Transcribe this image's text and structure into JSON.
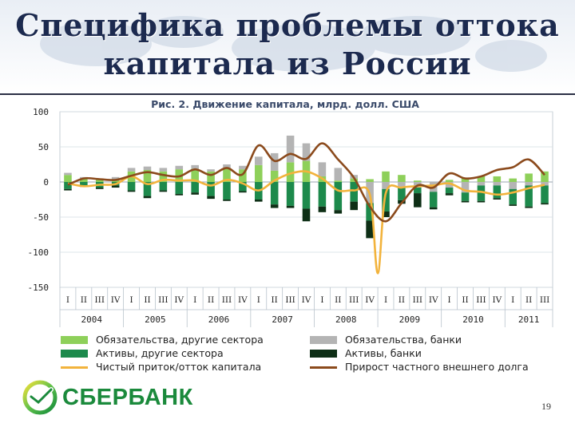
{
  "slide": {
    "title_line1": "Специфика проблемы оттока",
    "title_line2": "капитала из России",
    "brand": "СБЕРБАНК",
    "page_number": "19"
  },
  "colors": {
    "liab_other": "#8ed05a",
    "assets_other": "#1d8a4c",
    "liab_banks": "#b4b4b4",
    "assets_banks": "#0e2f16",
    "net_flow": "#f2b33c",
    "debt_growth": "#8b4a1c",
    "title": "#1c2a4f",
    "brand_green": "#1b8a3c"
  },
  "chart_data": {
    "type": "bar",
    "title": "Рис. 2. Движение капитала, млрд. долл. США",
    "ylim": [
      -150,
      100
    ],
    "yticks": [
      "100",
      "50",
      "0",
      "-50",
      "-100",
      "-150"
    ],
    "ytick_values": [
      100,
      50,
      0,
      -50,
      -100,
      -150
    ],
    "categories": [
      "I",
      "II",
      "III",
      "IV",
      "I",
      "II",
      "III",
      "IV",
      "I",
      "II",
      "III",
      "IV",
      "I",
      "II",
      "III",
      "IV",
      "I",
      "II",
      "III",
      "IV",
      "I",
      "II",
      "III",
      "IV",
      "I",
      "II",
      "III",
      "IV",
      "I",
      "II",
      "III"
    ],
    "years": [
      "2004",
      "2005",
      "2006",
      "2007",
      "2008",
      "2009",
      "2010",
      "2011"
    ],
    "year_quarter_counts": [
      4,
      4,
      4,
      4,
      4,
      4,
      4,
      3
    ],
    "grid": "horizontal",
    "series": [
      {
        "name": "Обязательства, другие сектора",
        "kind": "bar",
        "values": [
          10,
          5,
          3,
          4,
          15,
          17,
          15,
          18,
          19,
          15,
          20,
          18,
          24,
          16,
          28,
          30,
          8,
          2,
          5,
          4,
          15,
          10,
          2,
          0,
          3,
          5,
          8,
          8,
          5,
          12,
          15
        ]
      },
      {
        "name": "Активы, другие сектора",
        "kind": "bar",
        "values": [
          -10,
          -5,
          -8,
          -5,
          -12,
          -20,
          -12,
          -17,
          -15,
          -20,
          -25,
          -13,
          -25,
          -32,
          -34,
          -38,
          -35,
          -40,
          -28,
          -25,
          -32,
          -18,
          -8,
          -22,
          -8,
          -12,
          -22,
          -18,
          -22,
          -30,
          -25
        ]
      },
      {
        "name": "Обязательства, банки",
        "kind": "bar",
        "values": [
          3,
          2,
          2,
          3,
          5,
          5,
          5,
          5,
          5,
          3,
          5,
          5,
          12,
          25,
          38,
          25,
          20,
          18,
          5,
          -30,
          -10,
          -8,
          -8,
          -14,
          -8,
          -15,
          -5,
          -5,
          -10,
          -5,
          -5
        ]
      },
      {
        "name": "Активы, банки",
        "kind": "bar",
        "values": [
          -2,
          -2,
          -2,
          -3,
          -2,
          -3,
          -2,
          -2,
          -3,
          -4,
          -2,
          -2,
          -3,
          -5,
          -3,
          -18,
          -8,
          -5,
          -12,
          -25,
          -8,
          -5,
          -20,
          -3,
          -3,
          -2,
          -2,
          -2,
          -2,
          -2,
          -2
        ]
      },
      {
        "name": "Чистый приток/отток капитала",
        "kind": "line",
        "values": [
          -2,
          -6,
          -4,
          -3,
          8,
          -3,
          3,
          2,
          2,
          -5,
          3,
          -2,
          -12,
          2,
          12,
          15,
          5,
          -12,
          -12,
          -18,
          -16,
          -8,
          -6,
          -5,
          -2,
          -12,
          -14,
          -18,
          -15,
          -9,
          -4
        ]
      },
      {
        "name": "Прирост частного внешнего долга",
        "kind": "line",
        "values": [
          -4,
          5,
          4,
          3,
          9,
          14,
          10,
          8,
          18,
          10,
          20,
          11,
          52,
          30,
          40,
          33,
          55,
          32,
          6,
          -35,
          -56,
          -30,
          -5,
          -8,
          12,
          5,
          8,
          17,
          21,
          32,
          10
        ]
      }
    ],
    "net_flow_dip": {
      "after_category_index": 19,
      "value": -130
    }
  }
}
